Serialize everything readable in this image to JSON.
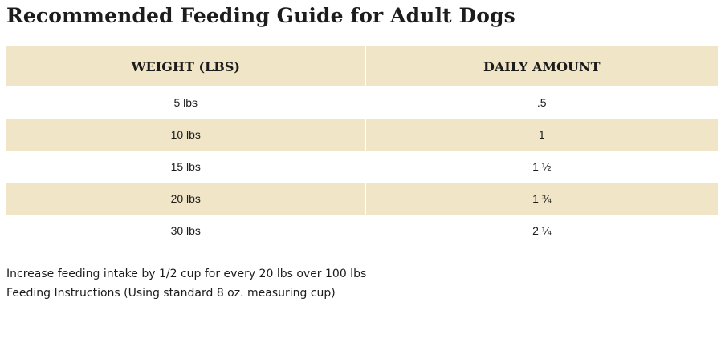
{
  "title": "Recommended Feeding Guide for Adult Dogs",
  "table": {
    "headers": [
      "WEIGHT (LBS)",
      "DAILY AMOUNT"
    ],
    "rows": [
      [
        "5 lbs",
        ".5"
      ],
      [
        "10 lbs",
        "1"
      ],
      [
        "15 lbs",
        "1 ½"
      ],
      [
        "20 lbs",
        "1 ¾"
      ],
      [
        "30 lbs",
        "2 ¼"
      ]
    ]
  },
  "notes": [
    "Increase feeding intake by 1/2 cup for every 20 lbs over 100 lbs",
    "Feeding Instructions (Using standard 8 oz. measuring cup)"
  ],
  "colors": {
    "band": "#f1e5c8",
    "text": "#1c1c1c",
    "background": "#ffffff"
  }
}
